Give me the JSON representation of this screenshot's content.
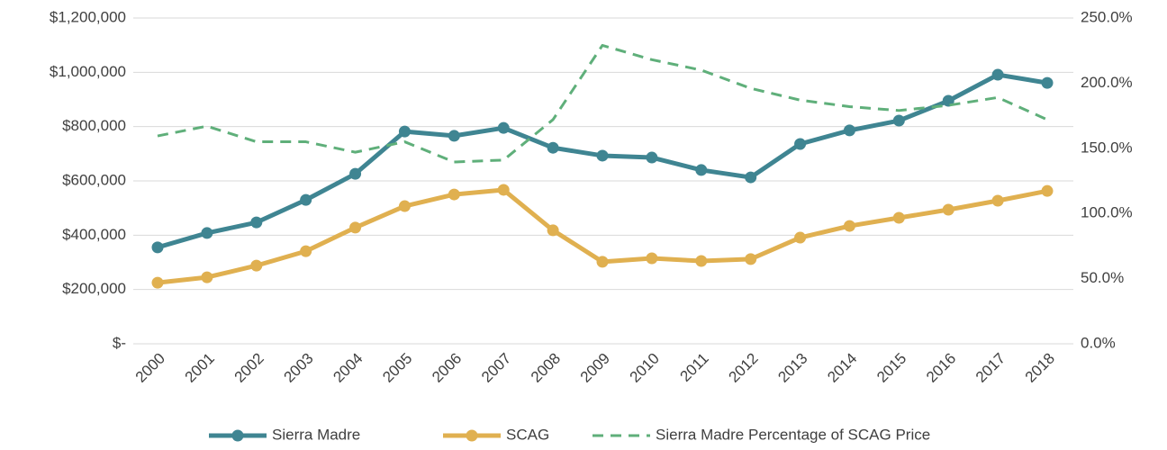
{
  "chart_data": {
    "type": "line",
    "categories": [
      "2000",
      "2001",
      "2002",
      "2003",
      "2004",
      "2005",
      "2006",
      "2007",
      "2008",
      "2009",
      "2010",
      "2011",
      "2012",
      "2013",
      "2014",
      "2015",
      "2016",
      "2017",
      "2018"
    ],
    "series": [
      {
        "name": "Sierra Madre",
        "color": "#3f8592",
        "values": [
          355000,
          408000,
          447000,
          530000,
          626000,
          782000,
          766000,
          795000,
          722000,
          693000,
          686000,
          640000,
          613000,
          736000,
          786000,
          822000,
          895000,
          991000,
          961000
        ]
      },
      {
        "name": "SCAG",
        "color": "#e0b050",
        "values": [
          225000,
          245000,
          288000,
          341000,
          428000,
          507000,
          550000,
          567000,
          418000,
          302000,
          315000,
          305000,
          312000,
          391000,
          434000,
          464000,
          494000,
          527000,
          563000
        ]
      },
      {
        "name": "Sierra Madre Percentage of SCAG Price",
        "color": "#5faf7a",
        "axis": "y2",
        "dashed": true,
        "values": [
          159.5,
          167,
          155,
          155,
          147,
          155,
          139.5,
          141,
          172,
          229,
          218,
          210,
          196,
          187,
          182,
          179,
          183,
          189,
          172
        ]
      }
    ],
    "ylim": [
      0,
      1200000
    ],
    "yticks": [
      {
        "value": 0,
        "label": "$-"
      },
      {
        "value": 200000,
        "label": "$200,000"
      },
      {
        "value": 400000,
        "label": "$400,000"
      },
      {
        "value": 600000,
        "label": "$600,000"
      },
      {
        "value": 800000,
        "label": "$800,000"
      },
      {
        "value": 1000000,
        "label": "$1,000,000"
      },
      {
        "value": 1200000,
        "label": "$1,200,000"
      }
    ],
    "y2lim": [
      0,
      250
    ],
    "y2ticks": [
      {
        "value": 0,
        "label": "0.0%"
      },
      {
        "value": 50,
        "label": "50.0%"
      },
      {
        "value": 100,
        "label": "100.0%"
      },
      {
        "value": 150,
        "label": "150.0%"
      },
      {
        "value": 200,
        "label": "200.0%"
      },
      {
        "value": 250,
        "label": "250.0%"
      }
    ],
    "grid": true,
    "legend": "bottom"
  }
}
